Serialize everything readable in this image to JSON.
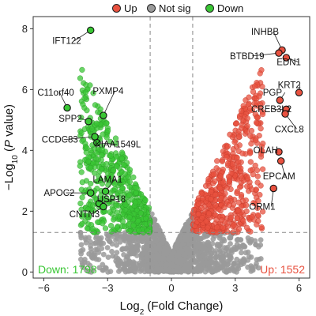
{
  "legend": {
    "items": [
      {
        "label": "Up",
        "color": "#e8513f"
      },
      {
        "label": "Not sig",
        "color": "#9a9a9a"
      },
      {
        "label": "Down",
        "color": "#39c634"
      }
    ]
  },
  "chart_data": {
    "type": "scatter",
    "title": "",
    "xlabel": "Log2 (Fold Change)",
    "ylabel": "−Log10 (P value)",
    "xlim": [
      -6.5,
      6.5
    ],
    "ylim": [
      -0.2,
      8.4
    ],
    "xticks": [
      -6,
      -3,
      0,
      3,
      6
    ],
    "yticks": [
      0,
      2,
      4,
      6,
      8
    ],
    "grid": false,
    "legend_position": "top",
    "thresholds": {
      "logfc": [
        -1,
        1
      ],
      "neg_log10_p": 1.3
    },
    "series": [
      {
        "name": "Up",
        "color": "#e8513f"
      },
      {
        "name": "Not sig",
        "color": "#9a9a9a"
      },
      {
        "name": "Down",
        "color": "#39c634"
      }
    ],
    "counts": {
      "down_label": "Down: 1798",
      "up_label": "Up: 1552"
    },
    "labeled_genes": [
      {
        "name": "IFT122",
        "x": -3.8,
        "y": 7.95,
        "group": "Down"
      },
      {
        "name": "C11orf40",
        "x": -4.9,
        "y": 5.4,
        "group": "Down"
      },
      {
        "name": "PXMP4",
        "x": -3.2,
        "y": 5.15,
        "group": "Down"
      },
      {
        "name": "SPP2",
        "x": -3.9,
        "y": 4.95,
        "group": "Down"
      },
      {
        "name": "CCDC83",
        "x": -3.6,
        "y": 4.45,
        "group": "Down"
      },
      {
        "name": "KIAA1549L",
        "x": -3.5,
        "y": 4.25,
        "group": "Down"
      },
      {
        "name": "LAMA1",
        "x": -3.1,
        "y": 2.65,
        "group": "Down"
      },
      {
        "name": "APOC2",
        "x": -3.8,
        "y": 2.6,
        "group": "Down"
      },
      {
        "name": "USP18",
        "x": -3.4,
        "y": 2.25,
        "group": "Down"
      },
      {
        "name": "CNTN3",
        "x": -3.2,
        "y": 2.15,
        "group": "Down"
      },
      {
        "name": "INHBB",
        "x": 5.2,
        "y": 7.3,
        "group": "Up"
      },
      {
        "name": "BTBD19",
        "x": 5.05,
        "y": 7.2,
        "group": "Up"
      },
      {
        "name": "EDN1",
        "x": 5.4,
        "y": 7.05,
        "group": "Up"
      },
      {
        "name": "PGP",
        "x": 5.1,
        "y": 5.65,
        "group": "Up"
      },
      {
        "name": "KRT2",
        "x": 6.0,
        "y": 5.9,
        "group": "Up"
      },
      {
        "name": "CREB3L2",
        "x": 5.4,
        "y": 5.35,
        "group": "Up"
      },
      {
        "name": "CXCL8",
        "x": 5.35,
        "y": 5.2,
        "group": "Up"
      },
      {
        "name": "OLAH",
        "x": 5.05,
        "y": 3.95,
        "group": "Up"
      },
      {
        "name": "EPCAM",
        "x": 5.15,
        "y": 3.65,
        "group": "Up"
      },
      {
        "name": "ORM1",
        "x": 4.8,
        "y": 2.75,
        "group": "Up"
      }
    ]
  }
}
